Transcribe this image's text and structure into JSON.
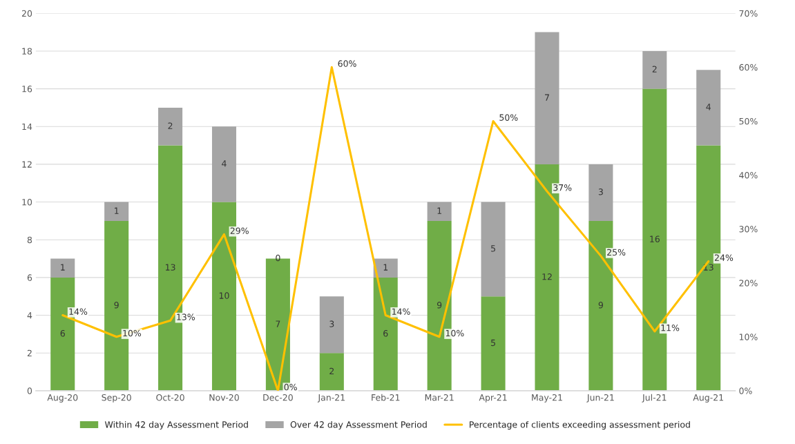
{
  "chart_data": {
    "type": "bar",
    "stacked": true,
    "categories": [
      "Aug-20",
      "Sep-20",
      "Oct-20",
      "Nov-20",
      "Dec-20",
      "Jan-21",
      "Feb-21",
      "Mar-21",
      "Apr-21",
      "May-21",
      "Jun-21",
      "Jul-21",
      "Aug-21"
    ],
    "series": [
      {
        "name": "Within 42 day Assessment Period",
        "color": "#70ad47",
        "values": [
          6,
          9,
          13,
          10,
          7,
          2,
          6,
          9,
          5,
          12,
          9,
          16,
          13
        ],
        "value_labels": [
          "6",
          "9",
          "13",
          "10",
          "7",
          "2",
          "6",
          "9",
          "5",
          "12",
          "9",
          "16",
          "13"
        ]
      },
      {
        "name": "Over 42 day Assessment Period",
        "color": "#a5a5a5",
        "values": [
          1,
          1,
          2,
          4,
          0,
          3,
          1,
          1,
          5,
          7,
          3,
          2,
          4
        ],
        "value_labels": [
          "1",
          "1",
          "2",
          "4",
          "0",
          "3",
          "1",
          "1",
          "5",
          "7",
          "3",
          "2",
          "4"
        ]
      },
      {
        "name": "Percentage of clients exceeding assessment period",
        "type": "line",
        "axis": "y2",
        "color": "#ffc000",
        "values": [
          14,
          10,
          13,
          29,
          0,
          60,
          14,
          10,
          50,
          37,
          25,
          11,
          24
        ],
        "value_labels": [
          "14%",
          "10%",
          "13%",
          "29%",
          "0%",
          "60%",
          "14%",
          "10%",
          "50%",
          "37%",
          "25%",
          "11%",
          "24%"
        ]
      }
    ],
    "ylim": [
      0,
      20
    ],
    "yticks": [
      0,
      2,
      4,
      6,
      8,
      10,
      12,
      14,
      16,
      18,
      20
    ],
    "y2lim": [
      0,
      70
    ],
    "y2ticks": [
      {
        "value": 0,
        "label": "0%"
      },
      {
        "value": 10,
        "label": "10%"
      },
      {
        "value": 20,
        "label": "20%"
      },
      {
        "value": 30,
        "label": "30%"
      },
      {
        "value": 40,
        "label": "40%"
      },
      {
        "value": 50,
        "label": "50%"
      },
      {
        "value": 60,
        "label": "60%"
      },
      {
        "value": 70,
        "label": "70%"
      }
    ],
    "grid": "y",
    "legend": "bottom"
  }
}
